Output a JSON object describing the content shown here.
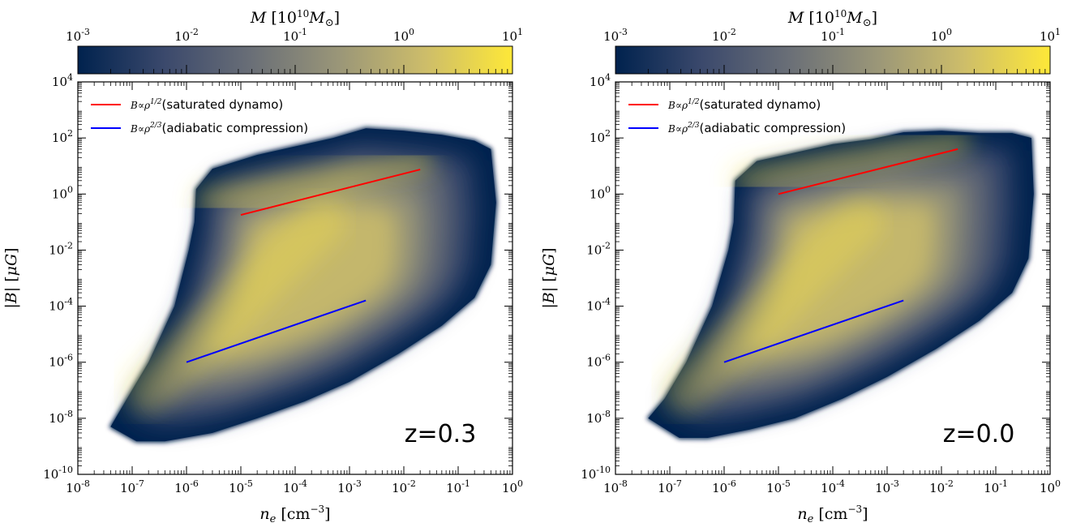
{
  "chart_data": [
    {
      "type": "heatmap",
      "xlabel": "n_e [cm^-3]",
      "ylabel": "|B| [μG]",
      "xscale": "log",
      "yscale": "log",
      "xlim": [
        1e-08,
        1
      ],
      "ylim": [
        1e-10,
        10000.0
      ],
      "x_ticks": [
        1e-08,
        1e-07,
        1e-06,
        1e-05,
        0.0001,
        0.001,
        0.01,
        0.1,
        1.0
      ],
      "y_ticks": [
        1e-10,
        1e-08,
        1e-06,
        0.0001,
        0.01,
        1.0,
        100.0,
        10000.0
      ],
      "colorbar": {
        "label": "M [10^10 M_⊙]",
        "scale": "log",
        "range": [
          0.001,
          10.0
        ],
        "ticks": [
          0.001,
          0.01,
          0.1,
          1.0,
          10.0
        ],
        "colormap": [
          "#00224e",
          "#3b496c",
          "#6a6f77",
          "#9a9678",
          "#cdbd6a",
          "#fee838"
        ]
      },
      "annotation": "z=0.3",
      "legend": [
        {
          "label": "(saturated dynamo)",
          "math": "B∝ρ^1/2",
          "color": "#ff0000"
        },
        {
          "label": "(adiabatic compression)",
          "math": "B∝ρ^2/3",
          "color": "#0000ff"
        }
      ],
      "series": [
        {
          "name": "saturated dynamo",
          "color": "#ff0000",
          "x": [
            1e-05,
            0.02
          ],
          "y": [
            0.18,
            7.5
          ]
        },
        {
          "name": "adiabatic compression",
          "color": "#0000ff",
          "x": [
            1e-06,
            0.002
          ],
          "y": [
            1e-06,
            0.00016
          ]
        }
      ],
      "density_outline": [
        [
          4e-08,
          5e-09
        ],
        [
          1.2e-07,
          1.5e-09
        ],
        [
          4e-07,
          1.5e-09
        ],
        [
          3e-06,
          3e-09
        ],
        [
          2e-05,
          1e-08
        ],
        [
          0.00015,
          4e-08
        ],
        [
          0.001,
          2e-07
        ],
        [
          0.008,
          2e-06
        ],
        [
          0.05,
          2e-05
        ],
        [
          0.2,
          0.0002
        ],
        [
          0.4,
          0.003
        ],
        [
          0.5,
          0.5
        ],
        [
          0.4,
          40
        ],
        [
          0.2,
          80
        ],
        [
          0.05,
          130
        ],
        [
          0.01,
          180
        ],
        [
          0.002,
          220
        ],
        [
          0.0005,
          100
        ],
        [
          0.0001,
          50
        ],
        [
          2e-05,
          25
        ],
        [
          3e-06,
          8
        ],
        [
          1.5e-06,
          1.5
        ],
        [
          1.4e-06,
          0.1
        ],
        [
          1.1e-06,
          0.01
        ],
        [
          6e-07,
          0.0001
        ],
        [
          2e-07,
          1e-06
        ],
        [
          8e-08,
          5e-08
        ]
      ]
    },
    {
      "type": "heatmap",
      "xlabel": "n_e [cm^-3]",
      "ylabel": "|B| [μG]",
      "xscale": "log",
      "yscale": "log",
      "xlim": [
        1e-08,
        1
      ],
      "ylim": [
        1e-10,
        10000.0
      ],
      "x_ticks": [
        1e-08,
        1e-07,
        1e-06,
        1e-05,
        0.0001,
        0.001,
        0.01,
        0.1,
        1.0
      ],
      "y_ticks": [
        1e-10,
        1e-08,
        1e-06,
        0.0001,
        0.01,
        1.0,
        100.0,
        10000.0
      ],
      "colorbar": {
        "label": "M [10^10 M_⊙]",
        "scale": "log",
        "range": [
          0.001,
          10.0
        ],
        "ticks": [
          0.001,
          0.01,
          0.1,
          1.0,
          10.0
        ],
        "colormap": [
          "#00224e",
          "#3b496c",
          "#6a6f77",
          "#9a9678",
          "#cdbd6a",
          "#fee838"
        ]
      },
      "annotation": "z=0.0",
      "legend": [
        {
          "label": "(saturated dynamo)",
          "math": "B∝ρ^1/2",
          "color": "#ff0000"
        },
        {
          "label": "(adiabatic compression)",
          "math": "B∝ρ^2/3",
          "color": "#0000ff"
        }
      ],
      "series": [
        {
          "name": "saturated dynamo",
          "color": "#ff0000",
          "x": [
            1e-05,
            0.02
          ],
          "y": [
            1.0,
            40
          ]
        },
        {
          "name": "adiabatic compression",
          "color": "#0000ff",
          "x": [
            1e-06,
            0.002
          ],
          "y": [
            1e-06,
            0.00016
          ]
        }
      ],
      "density_outline": [
        [
          4e-08,
          1e-08
        ],
        [
          1.5e-07,
          2e-09
        ],
        [
          5e-07,
          2e-09
        ],
        [
          3e-06,
          4e-09
        ],
        [
          2e-05,
          1e-08
        ],
        [
          0.00015,
          5e-08
        ],
        [
          0.001,
          3e-07
        ],
        [
          0.008,
          3e-06
        ],
        [
          0.05,
          3e-05
        ],
        [
          0.2,
          0.0003
        ],
        [
          0.4,
          0.005
        ],
        [
          0.5,
          1
        ],
        [
          0.45,
          100
        ],
        [
          0.2,
          150
        ],
        [
          0.05,
          150
        ],
        [
          0.01,
          180
        ],
        [
          0.002,
          160
        ],
        [
          0.0005,
          90
        ],
        [
          0.0001,
          60
        ],
        [
          2e-05,
          30
        ],
        [
          4e-06,
          15
        ],
        [
          1.6e-06,
          3
        ],
        [
          1.5e-06,
          0.1
        ],
        [
          1.2e-06,
          0.01
        ],
        [
          6e-07,
          0.0001
        ],
        [
          2e-07,
          1e-06
        ],
        [
          8e-08,
          5e-08
        ]
      ]
    }
  ]
}
